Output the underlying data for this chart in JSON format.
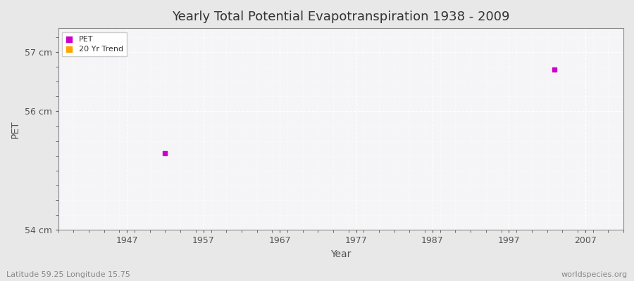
{
  "title": "Yearly Total Potential Evapotranspiration 1938 - 2009",
  "xlabel": "Year",
  "ylabel": "PET",
  "subtitle_left": "Latitude 59.25 Longitude 15.75",
  "subtitle_right": "worldspecies.org",
  "ylim": [
    54.0,
    57.4
  ],
  "xlim": [
    1938,
    2012
  ],
  "yticks": [
    54,
    56,
    57
  ],
  "ytick_labels": [
    "54 cm",
    "56 cm",
    "57 cm"
  ],
  "xticks": [
    1947,
    1957,
    1967,
    1977,
    1987,
    1997,
    2007
  ],
  "pet_points": [
    [
      1952,
      55.3
    ],
    [
      2003,
      56.7
    ]
  ],
  "trend_points": [],
  "pet_color": "#cc00cc",
  "trend_color": "#ffa500",
  "fig_bg_color": "#e8e8e8",
  "plot_bg_color": "#f5f5f8",
  "grid_color": "#ffffff",
  "axis_color": "#888888",
  "text_color": "#555555",
  "footer_color": "#888888",
  "legend_entries": [
    "PET",
    "20 Yr Trend"
  ],
  "title_fontsize": 13,
  "label_fontsize": 10,
  "tick_fontsize": 9,
  "marker_size": 4
}
